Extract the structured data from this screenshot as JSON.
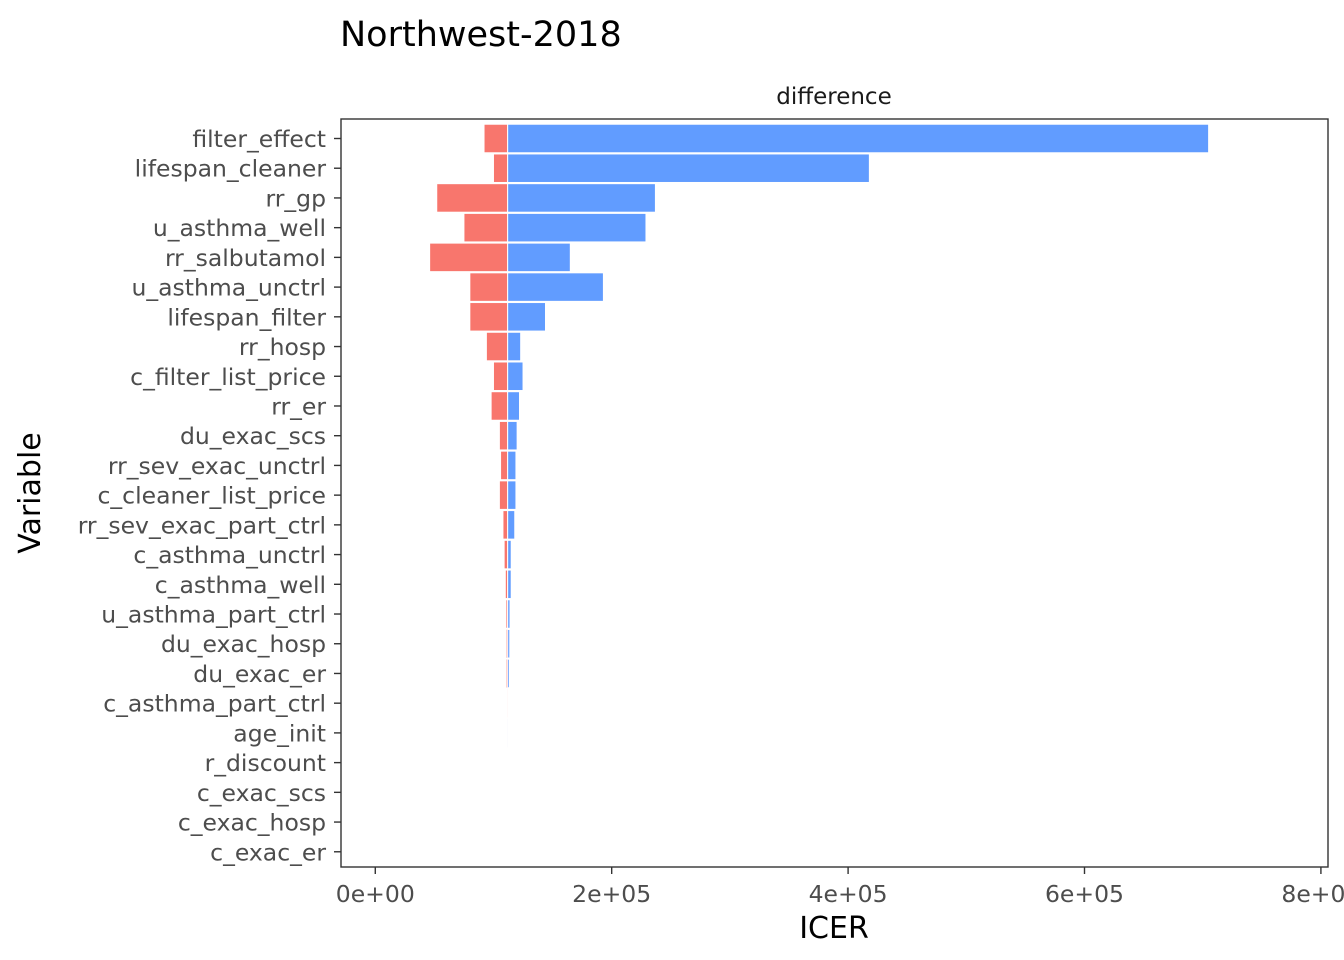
{
  "chart_data": {
    "type": "bar",
    "title": "Northwest-2018",
    "facet_label": "difference",
    "xlabel": "ICER",
    "ylabel": "Variable",
    "xlim": [
      -29000,
      806000
    ],
    "x_ticks": [
      0,
      200000,
      400000,
      600000,
      800000
    ],
    "x_tick_labels": [
      "0e+00",
      "2e+05",
      "4e+05",
      "6e+05",
      "8e+05"
    ],
    "base_value": 112000,
    "grid": false,
    "legend": "none",
    "colors": {
      "low": "#F8766D",
      "high": "#619CFF",
      "panel_border": "#333333"
    },
    "categories": [
      "filter_effect",
      "lifespan_cleaner",
      "rr_gp",
      "u_asthma_well",
      "rr_salbutamol",
      "u_asthma_unctrl",
      "lifespan_filter",
      "rr_hosp",
      "c_filter_list_price",
      "rr_er",
      "du_exac_scs",
      "rr_sev_exac_unctrl",
      "c_cleaner_list_price",
      "rr_sev_exac_part_ctrl",
      "c_asthma_unctrl",
      "c_asthma_well",
      "u_asthma_part_ctrl",
      "du_exac_hosp",
      "du_exac_er",
      "c_asthma_part_ctrl",
      "age_init",
      "r_discount",
      "c_exac_scs",
      "c_exac_hosp",
      "c_exac_er"
    ],
    "series": [
      {
        "values": [
          92000,
          100000,
          52000,
          75000,
          46000,
          80000,
          80000,
          94000,
          100000,
          98000,
          105000,
          106000,
          105000,
          108000,
          109000,
          110000,
          110500,
          111000,
          111000,
          111800,
          111900,
          112000,
          112000,
          112000,
          112000
        ]
      },
      {
        "values": [
          705000,
          418000,
          237000,
          229000,
          165000,
          193000,
          144000,
          123000,
          125000,
          122000,
          120000,
          119000,
          119000,
          118000,
          115000,
          115000,
          114000,
          113800,
          113500,
          112200,
          112100,
          112000,
          112000,
          112000,
          112000
        ]
      }
    ]
  }
}
